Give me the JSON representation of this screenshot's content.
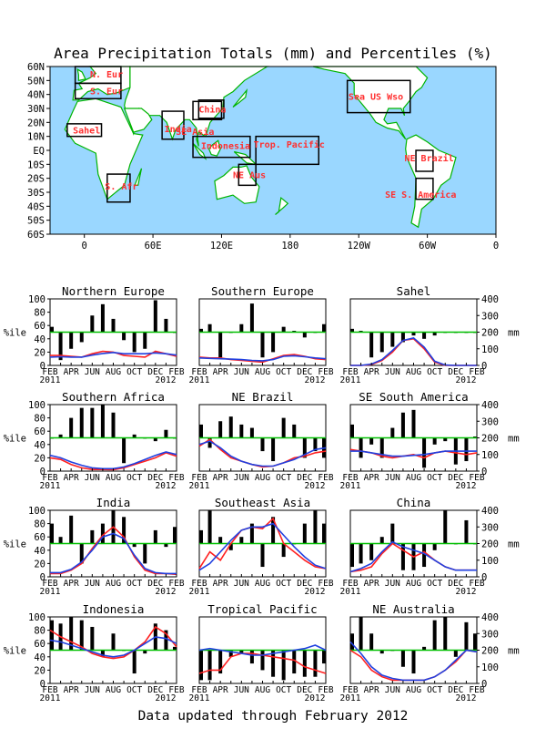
{
  "page_title": "Area Precipitation Totals (mm) and Percentiles (%)",
  "footer": "Data updated through February 2012",
  "left_axis_label": "%ile",
  "right_axis_label": "mm",
  "colors": {
    "ocean": "#9ad7ff",
    "land": "#ffffff",
    "coast": "#00b400",
    "box": "#000000",
    "region_label": "#ff3030",
    "bar": "#000000",
    "line_red": "#ff2020",
    "line_blue": "#2040e0",
    "ref": "#00c000"
  },
  "map": {
    "lat_ticks": [
      "60N",
      "50N",
      "40N",
      "30N",
      "20N",
      "10N",
      "EQ",
      "10S",
      "20S",
      "30S",
      "40S",
      "50S",
      "60S"
    ],
    "lon_ticks": [
      "0",
      "60E",
      "120E",
      "180",
      "120W",
      "60W",
      "0"
    ],
    "lon_tick_values": [
      0,
      60,
      120,
      180,
      240,
      300,
      360
    ],
    "xlim": [
      -30,
      360
    ],
    "ylim": [
      -60,
      60
    ],
    "regions": [
      {
        "label": "N. Eur",
        "lon": [
          -8,
          32
        ],
        "lat": [
          48,
          60
        ],
        "label_pos": [
          5,
          54
        ]
      },
      {
        "label": "S. Eur",
        "lon": [
          -8,
          32
        ],
        "lat": [
          37,
          48
        ],
        "label_pos": [
          5,
          42
        ]
      },
      {
        "label": "Sahel",
        "lon": [
          -15,
          15
        ],
        "lat": [
          10,
          19
        ],
        "label_pos": [
          -10,
          14
        ]
      },
      {
        "label": "S. Afr",
        "lon": [
          20,
          40
        ],
        "lat": [
          -37,
          -17
        ],
        "label_pos": [
          18,
          -26
        ]
      },
      {
        "label": "India",
        "lon": [
          68,
          87
        ],
        "lat": [
          8,
          28
        ],
        "label_pos": [
          70,
          15
        ]
      },
      {
        "label": "SE Asia",
        "lon": [
          95,
          120
        ],
        "lat": [
          22,
          35
        ],
        "label_pos": [
          80,
          13
        ]
      },
      {
        "label": "China",
        "lon": [
          100,
          122
        ],
        "lat": [
          23,
          36
        ],
        "label_pos": [
          100,
          29
        ]
      },
      {
        "label": "Indonesia",
        "lon": [
          95,
          145
        ],
        "lat": [
          -5,
          10
        ],
        "label_pos": [
          102,
          3
        ]
      },
      {
        "label": "Trop. Pacific",
        "lon": [
          150,
          205
        ],
        "lat": [
          -10,
          10
        ],
        "label_pos": [
          148,
          4
        ]
      },
      {
        "label": "NE Aus",
        "lon": [
          135,
          150
        ],
        "lat": [
          -25,
          -10
        ],
        "label_pos": [
          130,
          -18
        ]
      },
      {
        "label": "Sea US Wso",
        "lon": [
          230,
          285
        ],
        "lat": [
          27,
          50
        ],
        "label_pos": [
          231,
          38
        ]
      },
      {
        "label": "NE Brazil",
        "lon": [
          290,
          305
        ],
        "lat": [
          -15,
          0
        ],
        "label_pos": [
          280,
          -6
        ]
      },
      {
        "label": "SE S. America",
        "lon": [
          290,
          305
        ],
        "lat": [
          -35,
          -20
        ],
        "label_pos": [
          263,
          -32
        ]
      }
    ]
  },
  "chart_data": [
    {
      "type": "bar+line",
      "title": "Northern Europe",
      "x_start": "FEB 2011",
      "x_labels": [
        "FEB",
        "APR",
        "JUN",
        "AUG",
        "OCT",
        "DEC",
        "FEB"
      ],
      "year_labels": [
        "2011",
        "2012"
      ],
      "percentile_ylim": [
        0,
        100
      ],
      "percentile_ticks": [
        0,
        20,
        40,
        60,
        80,
        100
      ],
      "mm_ylim": [
        0,
        400
      ],
      "reference_percentile": 50,
      "percentiles": [
        58,
        8,
        25,
        35,
        75,
        92,
        70,
        38,
        20,
        25,
        98,
        70,
        50
      ],
      "series": [
        {
          "values": [
            60,
            60,
            55,
            50,
            70,
            85,
            80,
            60,
            55,
            50,
            85,
            70,
            55
          ]
        },
        {
          "values": [
            50,
            52,
            50,
            50,
            62,
            72,
            78,
            70,
            70,
            70,
            75,
            70,
            62
          ]
        }
      ]
    },
    {
      "type": "bar+line",
      "title": "Southern Europe",
      "x_start": "FEB 2011",
      "x_labels": [
        "FEB",
        "APR",
        "JUN",
        "AUG",
        "OCT",
        "DEC",
        "FEB"
      ],
      "year_labels": [
        "2011",
        "2012"
      ],
      "percentile_ylim": [
        0,
        100
      ],
      "percentile_ticks": [
        0,
        20,
        40,
        60,
        80,
        100
      ],
      "mm_ylim": [
        0,
        400
      ],
      "reference_percentile": 50,
      "percentiles": [
        55,
        62,
        12,
        50,
        62,
        93,
        12,
        20,
        58,
        52,
        42,
        50,
        62
      ],
      "series": [
        {
          "values": [
            50,
            45,
            45,
            35,
            30,
            25,
            20,
            40,
            60,
            65,
            55,
            40,
            35
          ]
        },
        {
          "values": [
            45,
            42,
            40,
            38,
            35,
            30,
            28,
            35,
            55,
            58,
            52,
            45,
            40
          ]
        }
      ]
    },
    {
      "type": "bar+line",
      "title": "Sahel",
      "x_start": "FEB 2011",
      "x_labels": [
        "FEB",
        "APR",
        "JUN",
        "AUG",
        "OCT",
        "DEC",
        "FEB"
      ],
      "year_labels": [
        "2011",
        "2012"
      ],
      "percentile_ylim": [
        0,
        100
      ],
      "percentile_ticks": [
        0,
        20,
        40,
        60,
        80,
        100
      ],
      "mm_ylim": [
        0,
        400
      ],
      "reference_percentile": 50,
      "percentiles": [
        55,
        52,
        12,
        20,
        28,
        35,
        45,
        40,
        45,
        50,
        50,
        50,
        50
      ],
      "series": [
        {
          "values": [
            0,
            0,
            5,
            30,
            80,
            150,
            160,
            100,
            20,
            0,
            0,
            0,
            0
          ]
        },
        {
          "values": [
            0,
            0,
            8,
            35,
            90,
            150,
            165,
            110,
            25,
            2,
            0,
            0,
            0
          ]
        }
      ]
    },
    {
      "type": "bar+line",
      "title": "Southern Africa",
      "x_start": "FEB 2011",
      "x_labels": [
        "FEB",
        "APR",
        "JUN",
        "AUG",
        "OCT",
        "DEC",
        "FEB"
      ],
      "year_labels": [
        "2011",
        "2012"
      ],
      "percentile_ylim": [
        0,
        100
      ],
      "percentile_ticks": [
        0,
        20,
        40,
        60,
        80,
        100
      ],
      "mm_ylim": [
        0,
        400
      ],
      "reference_percentile": 50,
      "percentiles": [
        50,
        55,
        80,
        95,
        95,
        100,
        88,
        12,
        55,
        50,
        45,
        62,
        50
      ],
      "series": [
        {
          "values": [
            80,
            70,
            40,
            20,
            10,
            10,
            8,
            20,
            40,
            60,
            80,
            110,
            90
          ]
        },
        {
          "values": [
            95,
            80,
            55,
            35,
            20,
            15,
            15,
            25,
            45,
            70,
            95,
            115,
            100
          ]
        }
      ]
    },
    {
      "type": "bar+line",
      "title": "NE Brazil",
      "x_start": "FEB 2011",
      "x_labels": [
        "FEB",
        "APR",
        "JUN",
        "AUG",
        "OCT",
        "DEC",
        "FEB"
      ],
      "year_labels": [
        "2011",
        "2012"
      ],
      "percentile_ylim": [
        0,
        100
      ],
      "percentile_ticks": [
        0,
        20,
        40,
        60,
        80,
        100
      ],
      "mm_ylim": [
        0,
        400
      ],
      "reference_percentile": 50,
      "percentiles": [
        70,
        35,
        75,
        82,
        70,
        65,
        30,
        15,
        80,
        70,
        20,
        30,
        20
      ],
      "series": [
        {
          "values": [
            150,
            190,
            130,
            80,
            60,
            40,
            25,
            30,
            50,
            80,
            90,
            110,
            120
          ]
        },
        {
          "values": [
            160,
            180,
            140,
            90,
            60,
            40,
            30,
            30,
            50,
            70,
            100,
            130,
            140
          ]
        }
      ]
    },
    {
      "type": "bar+line",
      "title": "SE South America",
      "x_start": "FEB 2011",
      "x_labels": [
        "FEB",
        "APR",
        "JUN",
        "AUG",
        "OCT",
        "DEC",
        "FEB"
      ],
      "year_labels": [
        "2011",
        "2012"
      ],
      "percentile_ylim": [
        0,
        100
      ],
      "percentile_ticks": [
        0,
        20,
        40,
        60,
        80,
        100
      ],
      "mm_ylim": [
        0,
        400
      ],
      "reference_percentile": 50,
      "percentiles": [
        70,
        20,
        40,
        20,
        65,
        88,
        92,
        5,
        40,
        45,
        10,
        15,
        52
      ],
      "series": [
        {
          "values": [
            130,
            120,
            110,
            90,
            80,
            90,
            100,
            80,
            110,
            120,
            110,
            100,
            110
          ]
        },
        {
          "values": [
            120,
            120,
            110,
            100,
            90,
            90,
            95,
            100,
            110,
            120,
            120,
            120,
            120
          ]
        }
      ]
    },
    {
      "type": "bar+line",
      "title": "India",
      "x_start": "FEB 2011",
      "x_labels": [
        "FEB",
        "APR",
        "JUN",
        "AUG",
        "OCT",
        "DEC",
        "FEB"
      ],
      "year_labels": [
        "2011",
        "2012"
      ],
      "percentile_ylim": [
        0,
        100
      ],
      "percentile_ticks": [
        0,
        20,
        40,
        60,
        80,
        100
      ],
      "mm_ylim": [
        0,
        400
      ],
      "reference_percentile": 50,
      "percentiles": [
        80,
        60,
        92,
        20,
        70,
        80,
        100,
        90,
        45,
        20,
        70,
        45,
        75
      ],
      "series": [
        {
          "values": [
            20,
            20,
            40,
            80,
            170,
            250,
            300,
            240,
            120,
            40,
            20,
            20,
            15
          ]
        },
        {
          "values": [
            25,
            25,
            45,
            90,
            160,
            240,
            260,
            230,
            130,
            50,
            25,
            20,
            20
          ]
        }
      ]
    },
    {
      "type": "bar+line",
      "title": "Southeast Asia",
      "x_start": "FEB 2011",
      "x_labels": [
        "FEB",
        "APR",
        "JUN",
        "AUG",
        "OCT",
        "DEC",
        "FEB"
      ],
      "year_labels": [
        "2011",
        "2012"
      ],
      "percentile_ylim": [
        0,
        100
      ],
      "percentile_ticks": [
        0,
        20,
        40,
        60,
        80,
        100
      ],
      "mm_ylim": [
        0,
        400
      ],
      "reference_percentile": 50,
      "percentiles": [
        70,
        100,
        60,
        40,
        60,
        80,
        15,
        90,
        30,
        50,
        80,
        100,
        80
      ],
      "series": [
        {
          "values": [
            50,
            150,
            100,
            200,
            280,
            300,
            290,
            350,
            200,
            150,
            100,
            60,
            50
          ]
        },
        {
          "values": [
            40,
            80,
            150,
            220,
            280,
            300,
            300,
            320,
            250,
            180,
            120,
            70,
            50
          ]
        }
      ]
    },
    {
      "type": "bar+line",
      "title": "China",
      "x_start": "FEB 2011",
      "x_labels": [
        "FEB",
        "APR",
        "JUN",
        "AUG",
        "OCT",
        "DEC",
        "FEB"
      ],
      "year_labels": [
        "2011",
        "2012"
      ],
      "percentile_ylim": [
        0,
        100
      ],
      "percentile_ticks": [
        0,
        20,
        40,
        60,
        80,
        100
      ],
      "mm_ylim": [
        0,
        400
      ],
      "reference_percentile": 50,
      "percentiles": [
        15,
        20,
        25,
        60,
        80,
        10,
        10,
        15,
        40,
        100,
        50,
        85,
        50
      ],
      "series": [
        {
          "values": [
            30,
            40,
            60,
            140,
            200,
            160,
            120,
            150,
            100,
            60,
            40,
            40,
            40
          ]
        },
        {
          "values": [
            30,
            50,
            80,
            150,
            210,
            180,
            160,
            140,
            100,
            60,
            40,
            40,
            40
          ]
        }
      ]
    },
    {
      "type": "bar+line",
      "title": "Indonesia",
      "x_start": "FEB 2011",
      "x_labels": [
        "FEB",
        "APR",
        "JUN",
        "AUG",
        "OCT",
        "DEC",
        "FEB"
      ],
      "year_labels": [
        "2011",
        "2012"
      ],
      "percentile_ylim": [
        0,
        100
      ],
      "percentile_ticks": [
        0,
        20,
        40,
        60,
        80,
        100
      ],
      "mm_ylim": [
        0,
        400
      ],
      "reference_percentile": 50,
      "percentiles": [
        95,
        90,
        100,
        95,
        85,
        40,
        75,
        50,
        15,
        45,
        90,
        80,
        55
      ],
      "series": [
        {
          "values": [
            320,
            280,
            250,
            220,
            180,
            160,
            150,
            160,
            200,
            250,
            340,
            300,
            220
          ]
        },
        {
          "values": [
            260,
            250,
            230,
            210,
            190,
            170,
            160,
            170,
            200,
            240,
            280,
            270,
            240
          ]
        }
      ]
    },
    {
      "type": "bar+line",
      "title": "Tropical Pacific",
      "x_start": "FEB 2011",
      "x_labels": [
        "FEB",
        "APR",
        "JUN",
        "AUG",
        "OCT",
        "DEC",
        "FEB"
      ],
      "year_labels": [
        "2011",
        "2012"
      ],
      "percentile_ylim": [
        0,
        100
      ],
      "percentile_ticks": [
        0,
        20,
        40,
        60,
        80,
        100
      ],
      "mm_ylim": [
        0,
        400
      ],
      "reference_percentile": 50,
      "percentiles": [
        5,
        5,
        15,
        40,
        45,
        30,
        20,
        10,
        5,
        15,
        10,
        10,
        30
      ],
      "series": [
        {
          "values": [
            60,
            80,
            80,
            160,
            180,
            180,
            170,
            160,
            150,
            140,
            100,
            80,
            60
          ]
        },
        {
          "values": [
            200,
            210,
            200,
            190,
            180,
            170,
            170,
            180,
            190,
            200,
            210,
            230,
            200
          ]
        }
      ]
    },
    {
      "type": "bar+line",
      "title": "NE Australia",
      "x_start": "FEB 2011",
      "x_labels": [
        "FEB",
        "APR",
        "JUN",
        "AUG",
        "OCT",
        "DEC",
        "FEB"
      ],
      "year_labels": [
        "2011",
        "2012"
      ],
      "percentile_ylim": [
        0,
        100
      ],
      "percentile_ticks": [
        0,
        20,
        40,
        60,
        80,
        100
      ],
      "mm_ylim": [
        0,
        400
      ],
      "reference_percentile": 50,
      "percentiles": [
        75,
        100,
        75,
        45,
        50,
        25,
        15,
        55,
        95,
        100,
        40,
        92,
        75
      ],
      "series": [
        {
          "values": [
            200,
            160,
            80,
            40,
            20,
            20,
            20,
            20,
            40,
            80,
            130,
            200,
            190
          ]
        },
        {
          "values": [
            250,
            180,
            100,
            50,
            30,
            20,
            20,
            20,
            40,
            80,
            140,
            200,
            190
          ]
        }
      ]
    }
  ]
}
